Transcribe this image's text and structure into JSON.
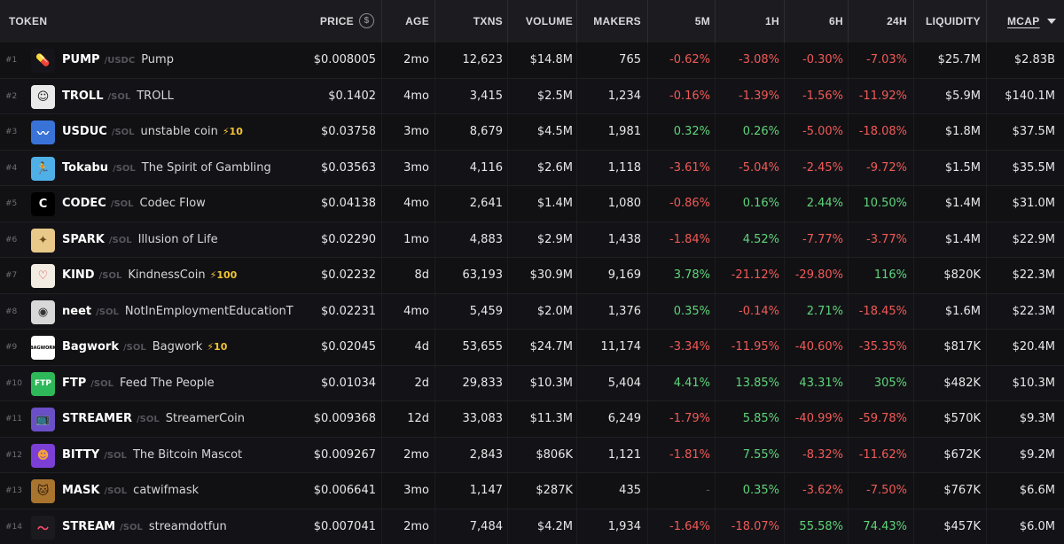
{
  "header": {
    "token": "TOKEN",
    "price": "PRICE",
    "price_icon": "$",
    "age": "AGE",
    "txns": "TXNS",
    "volume": "VOLUME",
    "makers": "MAKERS",
    "m5": "5M",
    "h1": "1H",
    "h6": "6H",
    "h24": "24H",
    "liquidity": "LIQUIDITY",
    "mcap": "MCAP"
  },
  "colors": {
    "positive": "#5fd47a",
    "negative": "#f05a57",
    "boost": "#f2c233"
  },
  "rows": [
    {
      "rank": "#1",
      "symbol": "PUMP",
      "quote": "/USDC",
      "name": "Pump",
      "boost": "",
      "price": "$0.008005",
      "age": "2mo",
      "txns": "12,623",
      "volume": "$14.8M",
      "makers": "765",
      "m5": "-0.62%",
      "h1": "-3.08%",
      "h6": "-0.30%",
      "h24": "-7.03%",
      "liquidity": "$25.7M",
      "mcap": "$2.83B",
      "icon": "pill-icon",
      "glyph": "💊",
      "avatar_bg": "#14141a",
      "avatar_fg": "#7ee07a"
    },
    {
      "rank": "#2",
      "symbol": "TROLL",
      "quote": "/SOL",
      "name": "TROLL",
      "boost": "",
      "price": "$0.1402",
      "age": "4mo",
      "txns": "3,415",
      "volume": "$2.5M",
      "makers": "1,234",
      "m5": "-0.16%",
      "h1": "-1.39%",
      "h6": "-1.56%",
      "h24": "-11.92%",
      "liquidity": "$5.9M",
      "mcap": "$140.1M",
      "icon": "trollface-icon",
      "glyph": "☺",
      "avatar_bg": "#e9e9e9",
      "avatar_fg": "#222222"
    },
    {
      "rank": "#3",
      "symbol": "USDUC",
      "quote": "/SOL",
      "name": "unstable coin",
      "boost": "⚡10",
      "price": "$0.03758",
      "age": "3mo",
      "txns": "8,679",
      "volume": "$4.5M",
      "makers": "1,981",
      "m5": "0.32%",
      "h1": "0.26%",
      "h6": "-5.00%",
      "h24": "-18.08%",
      "liquidity": "$1.8M",
      "mcap": "$37.5M",
      "icon": "pulse-chart-icon",
      "glyph": "〰",
      "avatar_bg": "#3a73d8",
      "avatar_fg": "#ffffff"
    },
    {
      "rank": "#4",
      "symbol": "Tokabu",
      "quote": "/SOL",
      "name": "The Spirit of Gambling",
      "boost": "",
      "price": "$0.03563",
      "age": "3mo",
      "txns": "4,116",
      "volume": "$2.6M",
      "makers": "1,118",
      "m5": "-3.61%",
      "h1": "-5.04%",
      "h6": "-2.45%",
      "h24": "-9.72%",
      "liquidity": "$1.5M",
      "mcap": "$35.5M",
      "icon": "dancing-creature-icon",
      "glyph": "🏃",
      "avatar_bg": "#4fb0e8",
      "avatar_fg": "#f5d23a"
    },
    {
      "rank": "#5",
      "symbol": "CODEC",
      "quote": "/SOL",
      "name": "Codec Flow",
      "boost": "",
      "price": "$0.04138",
      "age": "4mo",
      "txns": "2,641",
      "volume": "$1.4M",
      "makers": "1,080",
      "m5": "-0.86%",
      "h1": "0.16%",
      "h6": "2.44%",
      "h24": "10.50%",
      "liquidity": "$1.4M",
      "mcap": "$31.0M",
      "icon": "codec-logo-icon",
      "glyph": "C",
      "avatar_bg": "#000000",
      "avatar_fg": "#ffffff"
    },
    {
      "rank": "#6",
      "symbol": "SPARK",
      "quote": "/SOL",
      "name": "Illusion of Life",
      "boost": "",
      "price": "$0.02290",
      "age": "1mo",
      "txns": "4,883",
      "volume": "$2.9M",
      "makers": "1,438",
      "m5": "-1.84%",
      "h1": "4.52%",
      "h6": "-7.77%",
      "h24": "-3.77%",
      "liquidity": "$1.4M",
      "mcap": "$22.9M",
      "icon": "cartoon-character-icon",
      "glyph": "✦",
      "avatar_bg": "#e8c98a",
      "avatar_fg": "#6b4a1c"
    },
    {
      "rank": "#7",
      "symbol": "KIND",
      "quote": "/SOL",
      "name": "KindnessCoin",
      "boost": "⚡100",
      "price": "$0.02232",
      "age": "8d",
      "txns": "63,193",
      "volume": "$30.9M",
      "makers": "9,169",
      "m5": "3.78%",
      "h1": "-21.12%",
      "h6": "-29.80%",
      "h24": "116%",
      "liquidity": "$820K",
      "mcap": "$22.3M",
      "icon": "heart-icon",
      "glyph": "♡",
      "avatar_bg": "#f3ece2",
      "avatar_fg": "#d2443c"
    },
    {
      "rank": "#8",
      "symbol": "neet",
      "quote": "/SOL",
      "name": "NotInEmploymentEducationT",
      "boost": "",
      "price": "$0.02231",
      "age": "4mo",
      "txns": "5,459",
      "volume": "$2.0M",
      "makers": "1,376",
      "m5": "0.35%",
      "h1": "-0.14%",
      "h6": "2.71%",
      "h24": "-18.45%",
      "liquidity": "$1.6M",
      "mcap": "$22.3M",
      "icon": "neet-face-icon",
      "glyph": "◉",
      "avatar_bg": "#d8d8d8",
      "avatar_fg": "#333333"
    },
    {
      "rank": "#9",
      "symbol": "Bagwork",
      "quote": "/SOL",
      "name": "Bagwork",
      "boost": "⚡10",
      "price": "$0.02045",
      "age": "4d",
      "txns": "53,655",
      "volume": "$24.7M",
      "makers": "11,174",
      "m5": "-3.34%",
      "h1": "-11.95%",
      "h6": "-40.60%",
      "h24": "-35.35%",
      "liquidity": "$817K",
      "mcap": "$20.4M",
      "icon": "bagwork-logo-icon",
      "glyph": "BAGWORK",
      "avatar_bg": "#ffffff",
      "avatar_fg": "#000000"
    },
    {
      "rank": "#10",
      "symbol": "FTP",
      "quote": "/SOL",
      "name": "Feed The People",
      "boost": "",
      "price": "$0.01034",
      "age": "2d",
      "txns": "29,833",
      "volume": "$10.3M",
      "makers": "5,404",
      "m5": "4.41%",
      "h1": "13.85%",
      "h6": "43.31%",
      "h24": "305%",
      "liquidity": "$482K",
      "mcap": "$10.3M",
      "icon": "ftp-logo-icon",
      "glyph": "FTP",
      "avatar_bg": "#2fb85a",
      "avatar_fg": "#ffffff"
    },
    {
      "rank": "#11",
      "symbol": "STREAMER",
      "quote": "/SOL",
      "name": "StreamerCoin",
      "boost": "",
      "price": "$0.009368",
      "age": "12d",
      "txns": "33,083",
      "volume": "$11.3M",
      "makers": "6,249",
      "m5": "-1.79%",
      "h1": "5.85%",
      "h6": "-40.99%",
      "h24": "-59.78%",
      "liquidity": "$570K",
      "mcap": "$9.3M",
      "icon": "tv-icon",
      "glyph": "📺",
      "avatar_bg": "#6b4fc7",
      "avatar_fg": "#ffffff"
    },
    {
      "rank": "#12",
      "symbol": "BITTY",
      "quote": "/SOL",
      "name": "The Bitcoin Mascot",
      "boost": "",
      "price": "$0.009267",
      "age": "2mo",
      "txns": "2,843",
      "volume": "$806K",
      "makers": "1,121",
      "m5": "-1.81%",
      "h1": "7.55%",
      "h6": "-8.32%",
      "h24": "-11.62%",
      "liquidity": "$672K",
      "mcap": "$9.2M",
      "icon": "mascot-icon",
      "glyph": "☻",
      "avatar_bg": "#7b3fd6",
      "avatar_fg": "#f5a23a"
    },
    {
      "rank": "#13",
      "symbol": "MASK",
      "quote": "/SOL",
      "name": "catwifmask",
      "boost": "",
      "price": "$0.006641",
      "age": "3mo",
      "txns": "1,147",
      "volume": "$287K",
      "makers": "435",
      "m5": "-",
      "h1": "0.35%",
      "h6": "-3.62%",
      "h24": "-7.50%",
      "liquidity": "$767K",
      "mcap": "$6.6M",
      "icon": "cat-mask-icon",
      "glyph": "🐱",
      "avatar_bg": "#a8742e",
      "avatar_fg": "#2b1a08"
    },
    {
      "rank": "#14",
      "symbol": "STREAM",
      "quote": "/SOL",
      "name": "streamdotfun",
      "boost": "",
      "price": "$0.007041",
      "age": "2mo",
      "txns": "7,484",
      "volume": "$4.2M",
      "makers": "1,934",
      "m5": "-1.64%",
      "h1": "-18.07%",
      "h6": "55.58%",
      "h24": "74.43%",
      "liquidity": "$457K",
      "mcap": "$6.0M",
      "icon": "wave-line-icon",
      "glyph": "〜",
      "avatar_bg": "#1a1a1f",
      "avatar_fg": "#ff4b6b"
    }
  ]
}
